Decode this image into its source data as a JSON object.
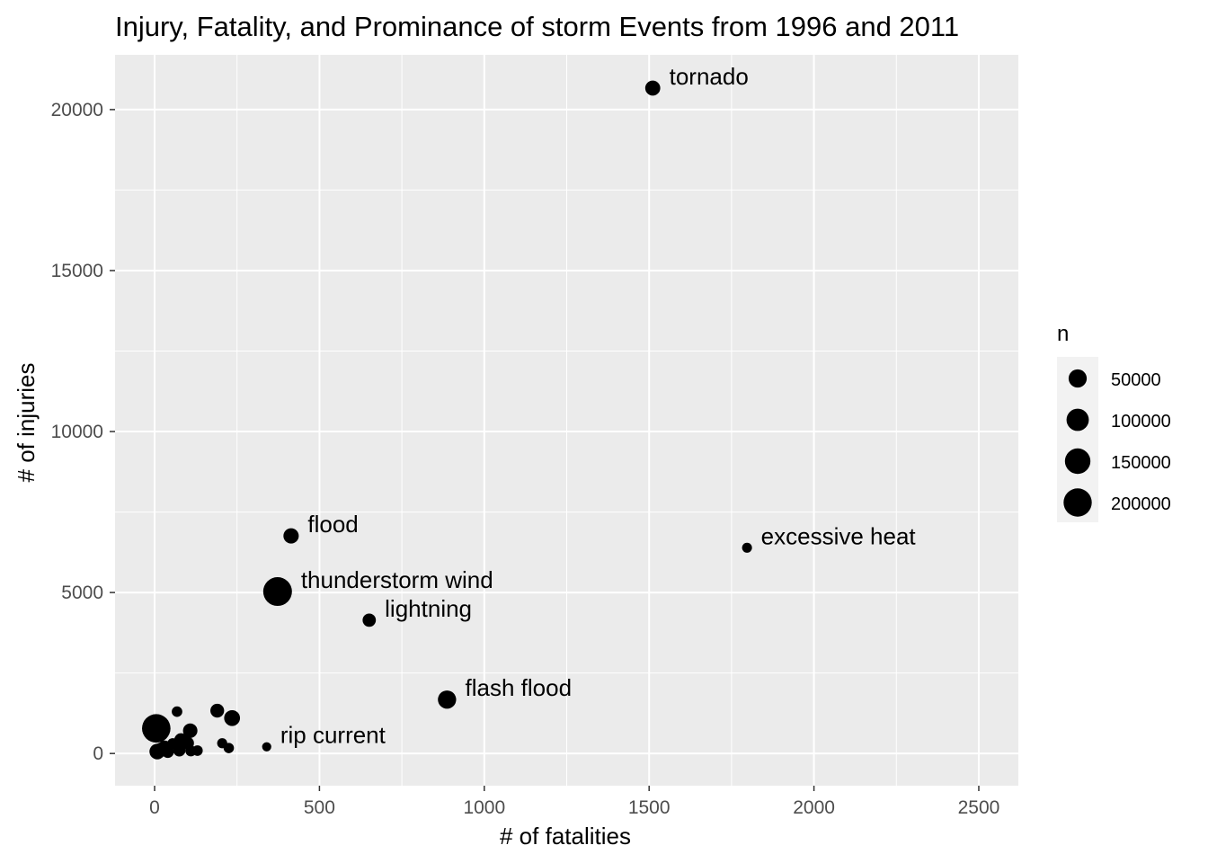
{
  "chart_data": {
    "type": "scatter",
    "title": "Injury, Fatality, and Prominance of storm Events from 1996 and 2011",
    "xlabel": "# of fatalities",
    "ylabel": "# of injuries",
    "xlim": [
      -120,
      2620
    ],
    "ylim": [
      -1000,
      21700
    ],
    "xticks": [
      0,
      500,
      1000,
      1500,
      2000,
      2500
    ],
    "xtick_labels": [
      "0",
      "500",
      "1000",
      "1500",
      "2000",
      "2500"
    ],
    "yticks": [
      0,
      5000,
      10000,
      15000,
      20000
    ],
    "ytick_labels": [
      "0",
      "5000",
      "10000",
      "15000",
      "20000"
    ],
    "grid": true,
    "panel_background": "#ebebeb",
    "grid_color": "#ffffff",
    "point_color": "#000000",
    "size_legend": {
      "title": "n",
      "position": "right",
      "values": [
        50000,
        100000,
        150000,
        200000
      ],
      "labels": [
        "50000",
        "100000",
        "150000",
        "200000"
      ]
    },
    "points": [
      {
        "fatalities": 1511,
        "injuries": 20667,
        "n": 24000,
        "label": "tornado"
      },
      {
        "fatalities": 1797,
        "injuries": 6391,
        "n": 1700,
        "label": "excessive heat"
      },
      {
        "fatalities": 414,
        "injuries": 6758,
        "n": 26000,
        "label": "flood"
      },
      {
        "fatalities": 373,
        "injuries": 5030,
        "n": 211000,
        "label": "thunderstorm wind"
      },
      {
        "fatalities": 651,
        "injuries": 4141,
        "n": 13200,
        "label": "lightning"
      },
      {
        "fatalities": 887,
        "injuries": 1674,
        "n": 51000,
        "label": "flash flood"
      },
      {
        "fatalities": 340,
        "injuries": 209,
        "n": 600,
        "label": "rip current"
      },
      {
        "fatalities": 5,
        "injuries": 780,
        "n": 205000
      },
      {
        "fatalities": 8,
        "injuries": 60,
        "n": 28000
      },
      {
        "fatalities": 20,
        "injuries": 120,
        "n": 18000
      },
      {
        "fatalities": 30,
        "injuries": 200,
        "n": 12000
      },
      {
        "fatalities": 40,
        "injuries": 50,
        "n": 8000
      },
      {
        "fatalities": 55,
        "injuries": 300,
        "n": 5000
      },
      {
        "fatalities": 68,
        "injuries": 1300,
        "n": 3000
      },
      {
        "fatalities": 75,
        "injuries": 100,
        "n": 9000
      },
      {
        "fatalities": 80,
        "injuries": 420,
        "n": 14000
      },
      {
        "fatalities": 100,
        "injuries": 320,
        "n": 11000
      },
      {
        "fatalities": 108,
        "injuries": 710,
        "n": 20000
      },
      {
        "fatalities": 110,
        "injuries": 80,
        "n": 4000
      },
      {
        "fatalities": 130,
        "injuries": 90,
        "n": 3000
      },
      {
        "fatalities": 190,
        "injuries": 1330,
        "n": 16000
      },
      {
        "fatalities": 205,
        "injuries": 320,
        "n": 2000
      },
      {
        "fatalities": 225,
        "injuries": 170,
        "n": 2500
      },
      {
        "fatalities": 235,
        "injuries": 1100,
        "n": 30000
      }
    ]
  }
}
